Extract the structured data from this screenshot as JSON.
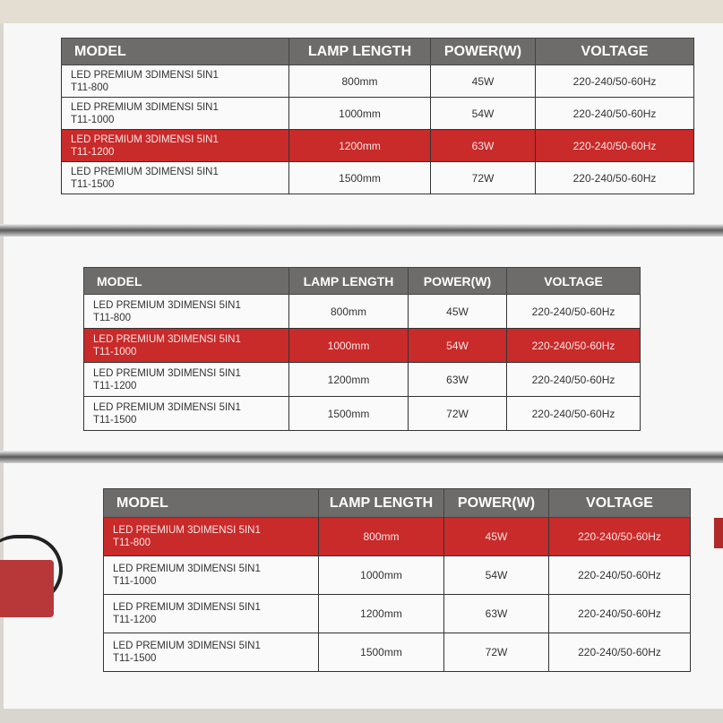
{
  "colors": {
    "header": "#6d6c6a",
    "highlight": "#c92a2a"
  },
  "tables": [
    {
      "headers": [
        "MODEL",
        "LAMP LENGTH",
        "POWER(W)",
        "VOLTAGE"
      ],
      "highlight_row": 2,
      "rows": [
        {
          "model": "LED PREMIUM 3DIMENSI 5IN1",
          "code": "T11-800",
          "length": "800mm",
          "power": "45W",
          "voltage": "220-240/50-60Hz"
        },
        {
          "model": "LED PREMIUM 3DIMENSI 5IN1",
          "code": "T11-1000",
          "length": "1000mm",
          "power": "54W",
          "voltage": "220-240/50-60Hz"
        },
        {
          "model": "LED PREMIUM 3DIMENSI 5IN1",
          "code": "T11-1200",
          "length": "1200mm",
          "power": "63W",
          "voltage": "220-240/50-60Hz"
        },
        {
          "model": "LED PREMIUM 3DIMENSI 5IN1",
          "code": "T11-1500",
          "length": "1500mm",
          "power": "72W",
          "voltage": "220-240/50-60Hz"
        }
      ]
    },
    {
      "headers": [
        "MODEL",
        "LAMP LENGTH",
        "POWER(W)",
        "VOLTAGE"
      ],
      "highlight_row": 1,
      "rows": [
        {
          "model": "LED PREMIUM 3DIMENSI 5IN1",
          "code": "T11-800",
          "length": "800mm",
          "power": "45W",
          "voltage": "220-240/50-60Hz"
        },
        {
          "model": "LED PREMIUM 3DIMENSI 5IN1",
          "code": "T11-1000",
          "length": "1000mm",
          "power": "54W",
          "voltage": "220-240/50-60Hz"
        },
        {
          "model": "LED PREMIUM 3DIMENSI 5IN1",
          "code": "T11-1200",
          "length": "1200mm",
          "power": "63W",
          "voltage": "220-240/50-60Hz"
        },
        {
          "model": "LED PREMIUM 3DIMENSI 5IN1",
          "code": "T11-1500",
          "length": "1500mm",
          "power": "72W",
          "voltage": "220-240/50-60Hz"
        }
      ]
    },
    {
      "headers": [
        "MODEL",
        "LAMP LENGTH",
        "POWER(W)",
        "VOLTAGE"
      ],
      "highlight_row": 0,
      "rows": [
        {
          "model": "LED PREMIUM 3DIMENSI 5IN1",
          "code": "T11-800",
          "length": "800mm",
          "power": "45W",
          "voltage": "220-240/50-60Hz"
        },
        {
          "model": "LED PREMIUM 3DIMENSI 5IN1",
          "code": "T11-1000",
          "length": "1000mm",
          "power": "54W",
          "voltage": "220-240/50-60Hz"
        },
        {
          "model": "LED PREMIUM 3DIMENSI 5IN1",
          "code": "T11-1200",
          "length": "1200mm",
          "power": "63W",
          "voltage": "220-240/50-60Hz"
        },
        {
          "model": "LED PREMIUM 3DIMENSI 5IN1",
          "code": "T11-1500",
          "length": "1500mm",
          "power": "72W",
          "voltage": "220-240/50-60Hz"
        }
      ]
    }
  ]
}
